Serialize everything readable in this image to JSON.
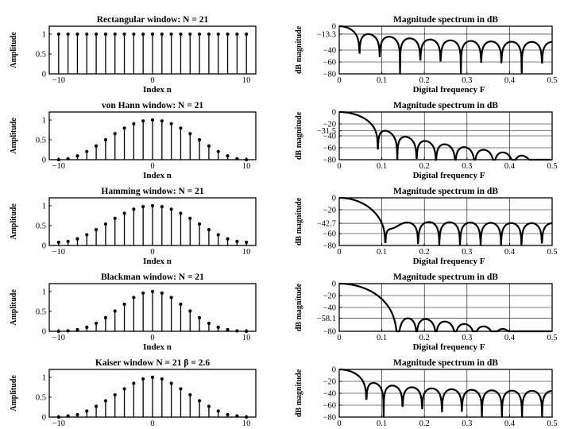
{
  "chart_data": [
    {
      "type": "stem",
      "title": "Rectangular window:  N = 21",
      "xlabel": "Index  n",
      "ylabel": "Amplitude",
      "xlim": [
        -11,
        11
      ],
      "ylim": [
        0,
        1.2
      ],
      "xticks": [
        "−10",
        "0",
        "10"
      ],
      "yticks": [
        "0",
        "0.5",
        "1"
      ],
      "x": [
        -10,
        -9,
        -8,
        -7,
        -6,
        -5,
        -4,
        -3,
        -2,
        -1,
        0,
        1,
        2,
        3,
        4,
        5,
        6,
        7,
        8,
        9,
        10
      ],
      "values": [
        1,
        1,
        1,
        1,
        1,
        1,
        1,
        1,
        1,
        1,
        1,
        1,
        1,
        1,
        1,
        1,
        1,
        1,
        1,
        1,
        1
      ]
    },
    {
      "type": "line",
      "title": "Magnitude spectrum in dB",
      "xlabel": "Digital frequency  F",
      "ylabel": "dB magnitude",
      "xlim": [
        0,
        0.5
      ],
      "ylim": [
        -80,
        0
      ],
      "xticks": [
        "0",
        "0.1",
        "0.2",
        "0.3",
        "0.4",
        "0.5"
      ],
      "yticks": [
        "0",
        "−13.3",
        "−40",
        "−60",
        "−80"
      ],
      "grid": true,
      "window": "rectangular",
      "N": 21,
      "sidelobe_level_db": -13.3
    },
    {
      "type": "stem",
      "title": "von Hann window:  N = 21",
      "xlabel": "Index  n",
      "ylabel": "Amplitude",
      "xlim": [
        -11,
        11
      ],
      "ylim": [
        0,
        1.2
      ],
      "xticks": [
        "−10",
        "0",
        "10"
      ],
      "yticks": [
        "0",
        "0.5",
        "1"
      ],
      "x": [
        -10,
        -9,
        -8,
        -7,
        -6,
        -5,
        -4,
        -3,
        -2,
        -1,
        0,
        1,
        2,
        3,
        4,
        5,
        6,
        7,
        8,
        9,
        10
      ],
      "values": [
        0.0,
        0.024,
        0.095,
        0.206,
        0.345,
        0.5,
        0.655,
        0.794,
        0.905,
        0.976,
        1.0,
        0.976,
        0.905,
        0.794,
        0.655,
        0.5,
        0.345,
        0.206,
        0.095,
        0.024,
        0.0
      ]
    },
    {
      "type": "line",
      "title": "Magnitude spectrum in dB",
      "xlabel": "Digital frequency  F",
      "ylabel": "dB magnitude",
      "xlim": [
        0,
        0.5
      ],
      "ylim": [
        -80,
        0
      ],
      "xticks": [
        "0",
        "0.1",
        "0.2",
        "0.3",
        "0.4",
        "0.5"
      ],
      "yticks": [
        "0",
        "−20",
        "−31.5",
        "−40",
        "−60",
        "−80"
      ],
      "grid": true,
      "window": "hann",
      "N": 21,
      "sidelobe_level_db": -31.5
    },
    {
      "type": "stem",
      "title": "Hamming window:  N = 21",
      "xlabel": "Index  n",
      "ylabel": "Amplitude",
      "xlim": [
        -11,
        11
      ],
      "ylim": [
        0,
        1.2
      ],
      "xticks": [
        "−10",
        "0",
        "10"
      ],
      "yticks": [
        "0",
        "0.5",
        "1"
      ],
      "x": [
        -10,
        -9,
        -8,
        -7,
        -6,
        -5,
        -4,
        -3,
        -2,
        -1,
        0,
        1,
        2,
        3,
        4,
        5,
        6,
        7,
        8,
        9,
        10
      ],
      "values": [
        0.08,
        0.102,
        0.167,
        0.27,
        0.398,
        0.54,
        0.682,
        0.81,
        0.913,
        0.978,
        1.0,
        0.978,
        0.913,
        0.81,
        0.682,
        0.54,
        0.398,
        0.27,
        0.167,
        0.102,
        0.08
      ]
    },
    {
      "type": "line",
      "title": "Magnitude spectrum in dB",
      "xlabel": "Digital frequency  F",
      "ylabel": "dB magnitude",
      "xlim": [
        0,
        0.5
      ],
      "ylim": [
        -80,
        0
      ],
      "xticks": [
        "0",
        "0.1",
        "0.2",
        "0.3",
        "0.4",
        "0.5"
      ],
      "yticks": [
        "0",
        "−20",
        "−42.7",
        "−60",
        "−80"
      ],
      "grid": true,
      "window": "hamming",
      "N": 21,
      "sidelobe_level_db": -42.7
    },
    {
      "type": "stem",
      "title": "Blackman window:  N = 21",
      "xlabel": "Index  n",
      "ylabel": "Amplitude",
      "xlim": [
        -11,
        11
      ],
      "ylim": [
        0,
        1.2
      ],
      "xticks": [
        "−10",
        "0",
        "10"
      ],
      "yticks": [
        "0",
        "0.5",
        "1"
      ],
      "x": [
        -10,
        -9,
        -8,
        -7,
        -6,
        -5,
        -4,
        -3,
        -2,
        -1,
        0,
        1,
        2,
        3,
        4,
        5,
        6,
        7,
        8,
        9,
        10
      ],
      "values": [
        0.0,
        0.01,
        0.04,
        0.1,
        0.2,
        0.34,
        0.51,
        0.68,
        0.85,
        0.96,
        1.0,
        0.96,
        0.85,
        0.68,
        0.51,
        0.34,
        0.2,
        0.1,
        0.04,
        0.01,
        0.0
      ]
    },
    {
      "type": "line",
      "title": "Magnitude spectrum in dB",
      "xlabel": "Digital frequency  F",
      "ylabel": "dB magnitude",
      "xlim": [
        0,
        0.5
      ],
      "ylim": [
        -80,
        0
      ],
      "xticks": [
        "0",
        "0.1",
        "0.2",
        "0.3",
        "0.4",
        "0.5"
      ],
      "yticks": [
        "0",
        "−20",
        "−40",
        "−58.1",
        "−80"
      ],
      "grid": true,
      "window": "blackman",
      "N": 21,
      "sidelobe_level_db": -58.1
    },
    {
      "type": "stem",
      "title": "Kaiser window  N = 21    β = 2.6",
      "xlabel": "Index  n",
      "ylabel": "Amplitude",
      "xlim": [
        -11,
        11
      ],
      "ylim": [
        0,
        1.2
      ],
      "xticks": [
        "−10",
        "0",
        "10"
      ],
      "yticks": [
        "0",
        "0.5",
        "1"
      ],
      "x": [
        -10,
        -9,
        -8,
        -7,
        -6,
        -5,
        -4,
        -3,
        -2,
        -1,
        0,
        1,
        2,
        3,
        4,
        5,
        6,
        7,
        8,
        9,
        10
      ],
      "values": [
        0.0,
        0.03,
        0.06,
        0.15,
        0.27,
        0.41,
        0.56,
        0.71,
        0.85,
        0.96,
        1.0,
        0.96,
        0.85,
        0.71,
        0.56,
        0.41,
        0.27,
        0.15,
        0.06,
        0.03,
        0.0
      ]
    },
    {
      "type": "line",
      "title": "Magnitude spectrum in dB",
      "xlabel": "Digital frequency  F",
      "ylabel": "dB magnitude",
      "xlim": [
        0,
        0.5
      ],
      "ylim": [
        -80,
        0
      ],
      "xticks": [
        "0",
        "0.1",
        "0.2",
        "0.3",
        "0.4",
        "0.5"
      ],
      "yticks": [
        "0",
        "−20",
        "−40",
        "−60",
        "−80"
      ],
      "grid": true,
      "window": "kaiser",
      "N": 21,
      "beta": 2.6
    }
  ]
}
